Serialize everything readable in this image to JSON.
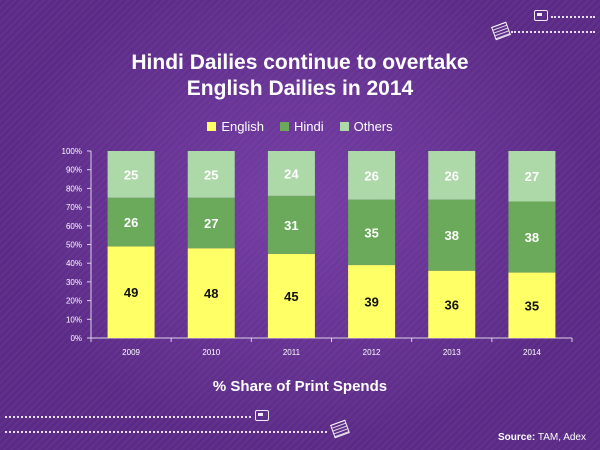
{
  "title_line1": "Hindi Dailies continue to overtake",
  "title_line2": "English Dailies in 2014",
  "subtitle": "% Share of  Print Spends",
  "source_label": "Source:",
  "source_text": "TAM, Adex",
  "decor": {
    "top_icons": [
      "newspaper-icon",
      "book-icon"
    ],
    "bottom_icons": [
      "newspaper-icon",
      "book-icon"
    ]
  },
  "colors": {
    "background": "#5b2a86",
    "english": "#ffff66",
    "hindi": "#6aaa5a",
    "others": "#add8a8",
    "axis": "#dcd0e8"
  },
  "chart_data": {
    "type": "bar",
    "stacked": true,
    "categories": [
      "2009",
      "2010",
      "2011",
      "2012",
      "2013",
      "2014"
    ],
    "series": [
      {
        "name": "English",
        "color": "#ffff66",
        "values": [
          49,
          48,
          45,
          39,
          36,
          35
        ]
      },
      {
        "name": "Hindi",
        "color": "#6aaa5a",
        "values": [
          26,
          27,
          31,
          35,
          38,
          38
        ]
      },
      {
        "name": "Others",
        "color": "#add8a8",
        "values": [
          25,
          25,
          24,
          26,
          26,
          27
        ]
      }
    ],
    "yticks": [
      "0%",
      "10%",
      "20%",
      "30%",
      "40%",
      "50%",
      "60%",
      "70%",
      "80%",
      "90%",
      "100%"
    ],
    "ylim": [
      0,
      100
    ],
    "legend": "top",
    "grid": false
  }
}
